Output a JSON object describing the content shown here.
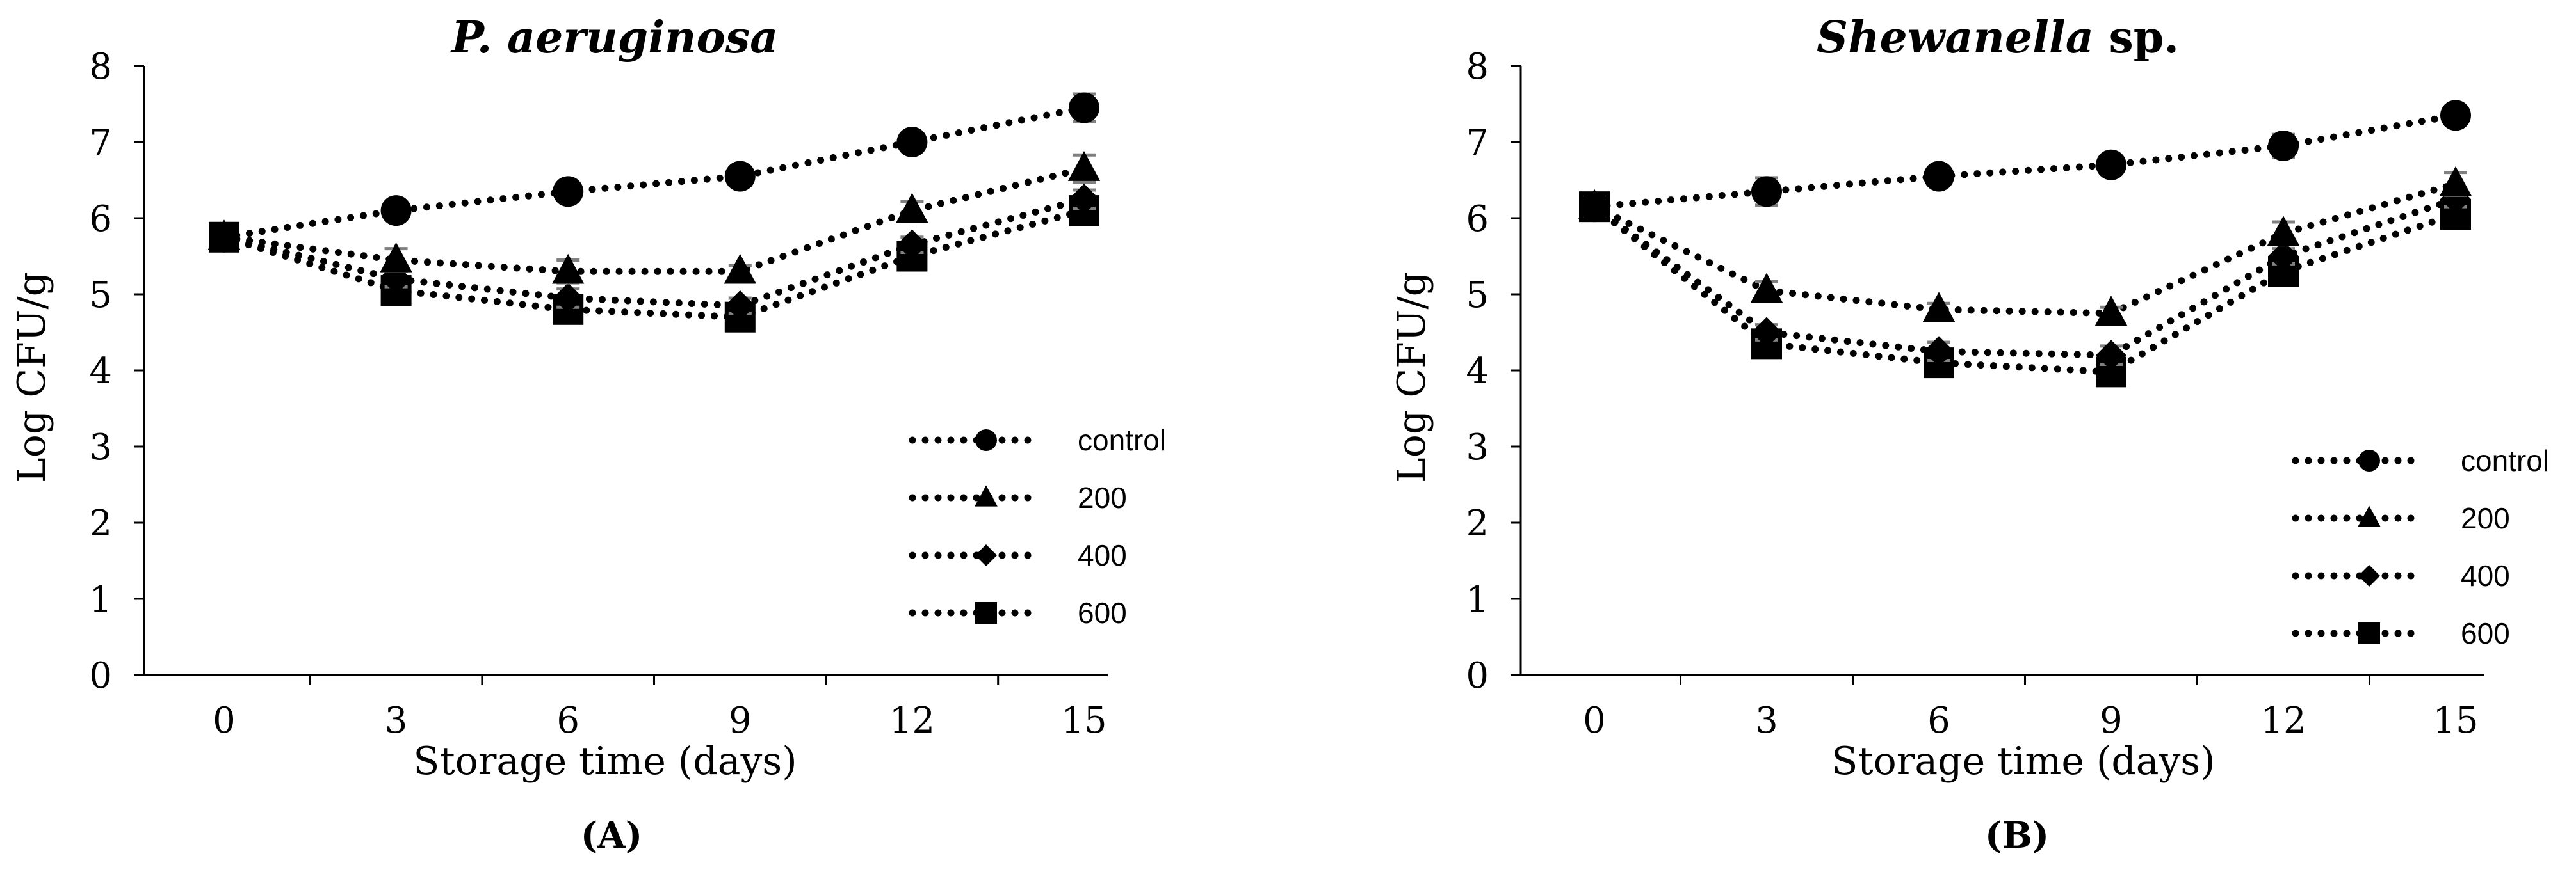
{
  "figure": {
    "panel_labels": [
      "(A)",
      "(B)"
    ]
  },
  "chart_data": [
    {
      "type": "line",
      "title": "P. aeruginosa",
      "title_parts": [
        {
          "text": "P. aeruginosa",
          "italic": true
        }
      ],
      "xlabel": "Storage time (days)",
      "ylabel": "Log CFU/g",
      "ylim": [
        0,
        8
      ],
      "yticks": [
        0,
        1,
        2,
        3,
        4,
        5,
        6,
        7,
        8
      ],
      "x": [
        0,
        3,
        6,
        9,
        12,
        15
      ],
      "legend_position": "lower-right",
      "line_style": "dotted",
      "series": [
        {
          "name": "control",
          "marker": "circle",
          "values": [
            5.75,
            6.1,
            6.35,
            6.55,
            7.0,
            7.45
          ],
          "errors": [
            0.08,
            0.08,
            0.08,
            0.12,
            0.1,
            0.18
          ]
        },
        {
          "name": "200",
          "marker": "triangle",
          "values": [
            5.75,
            5.45,
            5.3,
            5.3,
            6.1,
            6.65
          ],
          "errors": [
            0.08,
            0.15,
            0.15,
            0.08,
            0.12,
            0.18
          ]
        },
        {
          "name": "400",
          "marker": "diamond",
          "values": [
            5.75,
            5.2,
            4.95,
            4.85,
            5.65,
            6.25
          ],
          "errors": [
            0.08,
            0.1,
            0.12,
            0.1,
            0.1,
            0.12
          ]
        },
        {
          "name": "600",
          "marker": "square",
          "values": [
            5.75,
            5.05,
            4.8,
            4.7,
            5.5,
            6.1
          ],
          "errors": [
            0.08,
            0.08,
            0.12,
            0.08,
            0.1,
            0.12
          ]
        }
      ]
    },
    {
      "type": "line",
      "title": "Shewanella sp.",
      "title_parts": [
        {
          "text": "Shewanella",
          "italic": true
        },
        {
          "text": " sp.",
          "italic": false
        }
      ],
      "xlabel": "Storage time (days)",
      "ylabel": "Log CFU/g",
      "ylim": [
        0,
        8
      ],
      "yticks": [
        0,
        1,
        2,
        3,
        4,
        5,
        6,
        7,
        8
      ],
      "x": [
        0,
        3,
        6,
        9,
        12,
        15
      ],
      "legend_position": "lower-right",
      "line_style": "dotted",
      "series": [
        {
          "name": "control",
          "marker": "circle",
          "values": [
            6.15,
            6.35,
            6.55,
            6.7,
            6.95,
            7.35
          ],
          "errors": [
            0.12,
            0.18,
            0.1,
            0.08,
            0.15,
            0.12
          ]
        },
        {
          "name": "200",
          "marker": "triangle",
          "values": [
            6.15,
            5.05,
            4.8,
            4.75,
            5.8,
            6.45
          ],
          "errors": [
            0.12,
            0.12,
            0.08,
            0.08,
            0.15,
            0.15
          ]
        },
        {
          "name": "400",
          "marker": "diamond",
          "values": [
            6.15,
            4.5,
            4.25,
            4.2,
            5.5,
            6.25
          ],
          "errors": [
            0.12,
            0.1,
            0.12,
            0.12,
            0.1,
            0.1
          ]
        },
        {
          "name": "600",
          "marker": "square",
          "values": [
            6.15,
            4.35,
            4.1,
            3.98,
            5.3,
            6.05
          ],
          "errors": [
            0.12,
            0.08,
            0.08,
            0.1,
            0.1,
            0.1
          ]
        }
      ]
    }
  ]
}
